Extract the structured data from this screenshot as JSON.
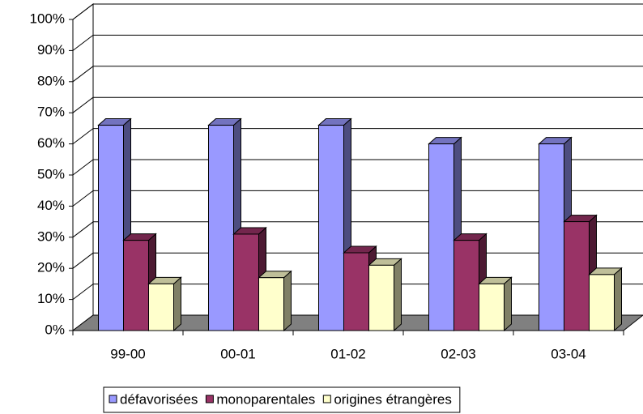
{
  "chart_data": {
    "type": "bar3d",
    "categories": [
      "99-00",
      "00-01",
      "01-02",
      "02-03",
      "03-04"
    ],
    "series": [
      {
        "name": "défavorisées",
        "color": "#9999ff",
        "values": [
          66,
          66,
          66,
          60,
          60
        ]
      },
      {
        "name": "monoparentales",
        "color": "#993366",
        "values": [
          29,
          31,
          25,
          29,
          35
        ]
      },
      {
        "name": "origines étrangères",
        "color": "#ffffcc",
        "values": [
          15,
          17,
          21,
          15,
          18
        ]
      }
    ],
    "ylim": [
      0,
      100
    ],
    "yticks": [
      {
        "value": 0,
        "label": "0%"
      },
      {
        "value": 10,
        "label": "10%"
      },
      {
        "value": 20,
        "label": "20%"
      },
      {
        "value": 30,
        "label": "30%"
      },
      {
        "value": 40,
        "label": "40%"
      },
      {
        "value": 50,
        "label": "50%"
      },
      {
        "value": 60,
        "label": "60%"
      },
      {
        "value": 70,
        "label": "70%"
      },
      {
        "value": 80,
        "label": "80%"
      },
      {
        "value": 90,
        "label": "90%"
      },
      {
        "value": 100,
        "label": "100%"
      }
    ],
    "grid": true,
    "legend": "bottom"
  }
}
